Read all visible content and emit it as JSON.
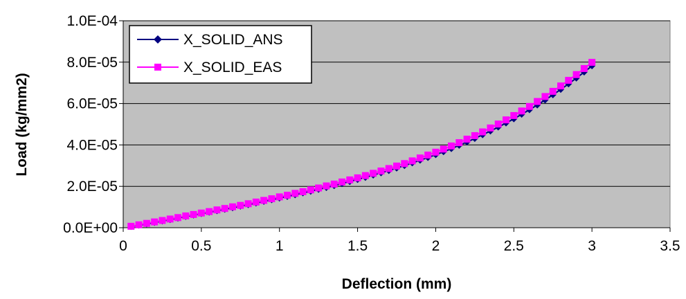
{
  "chart_data": {
    "type": "line",
    "title": "",
    "xlabel": "Deflection (mm)",
    "ylabel": "Load (kg/mm2)",
    "xlim": [
      0,
      3.5
    ],
    "ylim": [
      0,
      0.0001
    ],
    "x_ticks": [
      0,
      0.5,
      1,
      1.5,
      2,
      2.5,
      3,
      3.5
    ],
    "x_tick_labels": [
      "0",
      "0.5",
      "1",
      "1.5",
      "2",
      "2.5",
      "3",
      "3.5"
    ],
    "y_ticks": [
      0,
      2e-05,
      4e-05,
      6e-05,
      8e-05,
      0.0001
    ],
    "y_tick_labels": [
      "0.0E+00",
      "2.0E-05",
      "4.0E-05",
      "6.0E-05",
      "8.0E-05",
      "1.0E-04"
    ],
    "grid": "horizontal",
    "legend_position": "top-left",
    "plot_background": "#c0c0c0",
    "series": [
      {
        "name": "X_SOLID_ANS",
        "color": "#000080",
        "marker": "diamond",
        "x": [
          0.05,
          0.1,
          0.15,
          0.2,
          0.25,
          0.3,
          0.35,
          0.4,
          0.45,
          0.5,
          0.55,
          0.6,
          0.65,
          0.7,
          0.75,
          0.8,
          0.85,
          0.9,
          0.95,
          1.0,
          1.05,
          1.1,
          1.15,
          1.2,
          1.25,
          1.3,
          1.35,
          1.4,
          1.45,
          1.5,
          1.55,
          1.6,
          1.65,
          1.7,
          1.75,
          1.8,
          1.85,
          1.9,
          1.95,
          2.0,
          2.05,
          2.1,
          2.15,
          2.2,
          2.25,
          2.3,
          2.35,
          2.4,
          2.45,
          2.5,
          2.55,
          2.6,
          2.65,
          2.7,
          2.75,
          2.8,
          2.85,
          2.9,
          2.95,
          3.0
        ],
        "y": [
          6e-07,
          1.2e-06,
          1.8e-06,
          2.5e-06,
          3.2e-06,
          3.9e-06,
          4.6e-06,
          5.4e-06,
          6.1e-06,
          6.8e-06,
          7.5e-06,
          8.2e-06,
          8.9e-06,
          9.6e-06,
          1.04e-05,
          1.11e-05,
          1.19e-05,
          1.27e-05,
          1.35e-05,
          1.43e-05,
          1.51e-05,
          1.59e-05,
          1.68e-05,
          1.76e-05,
          1.85e-05,
          1.94e-05,
          2.03e-05,
          2.13e-05,
          2.23e-05,
          2.33e-05,
          2.43e-05,
          2.54e-05,
          2.65e-05,
          2.76e-05,
          2.88e-05,
          3e-05,
          3.13e-05,
          3.26e-05,
          3.39e-05,
          3.53e-05,
          3.67e-05,
          3.82e-05,
          3.98e-05,
          4.14e-05,
          4.31e-05,
          4.49e-05,
          4.67e-05,
          4.86e-05,
          5.06e-05,
          5.26e-05,
          5.48e-05,
          5.7e-05,
          5.93e-05,
          6.17e-05,
          6.42e-05,
          6.68e-05,
          6.95e-05,
          7.23e-05,
          7.52e-05,
          7.82e-05
        ]
      },
      {
        "name": "X_SOLID_EAS",
        "color": "#ff00ff",
        "marker": "square",
        "x": [
          0.05,
          0.1,
          0.15,
          0.2,
          0.25,
          0.3,
          0.35,
          0.4,
          0.45,
          0.5,
          0.55,
          0.6,
          0.65,
          0.7,
          0.75,
          0.8,
          0.85,
          0.9,
          0.95,
          1.0,
          1.05,
          1.1,
          1.15,
          1.2,
          1.25,
          1.3,
          1.35,
          1.4,
          1.45,
          1.5,
          1.55,
          1.6,
          1.65,
          1.7,
          1.75,
          1.8,
          1.85,
          1.9,
          1.95,
          2.0,
          2.05,
          2.1,
          2.15,
          2.2,
          2.25,
          2.3,
          2.35,
          2.4,
          2.45,
          2.5,
          2.55,
          2.6,
          2.65,
          2.7,
          2.75,
          2.8,
          2.85,
          2.9,
          2.95,
          3.0
        ],
        "y": [
          7e-07,
          1.4e-06,
          2.1e-06,
          2.8e-06,
          3.5e-06,
          4.2e-06,
          4.9e-06,
          5.7e-06,
          6.4e-06,
          7.1e-06,
          7.8e-06,
          8.6e-06,
          9.3e-06,
          1.01e-05,
          1.08e-05,
          1.16e-05,
          1.24e-05,
          1.32e-05,
          1.4e-05,
          1.49e-05,
          1.57e-05,
          1.66e-05,
          1.74e-05,
          1.83e-05,
          1.92e-05,
          2.02e-05,
          2.11e-05,
          2.21e-05,
          2.31e-05,
          2.41e-05,
          2.52e-05,
          2.63e-05,
          2.74e-05,
          2.86e-05,
          2.98e-05,
          3.1e-05,
          3.23e-05,
          3.37e-05,
          3.51e-05,
          3.65e-05,
          3.8e-05,
          3.95e-05,
          4.11e-05,
          4.28e-05,
          4.45e-05,
          4.63e-05,
          4.82e-05,
          5.01e-05,
          5.21e-05,
          5.42e-05,
          5.64e-05,
          5.86e-05,
          6.1e-05,
          6.34e-05,
          6.59e-05,
          6.85e-05,
          7.12e-05,
          7.4e-05,
          7.69e-05,
          7.99e-05
        ]
      }
    ]
  }
}
